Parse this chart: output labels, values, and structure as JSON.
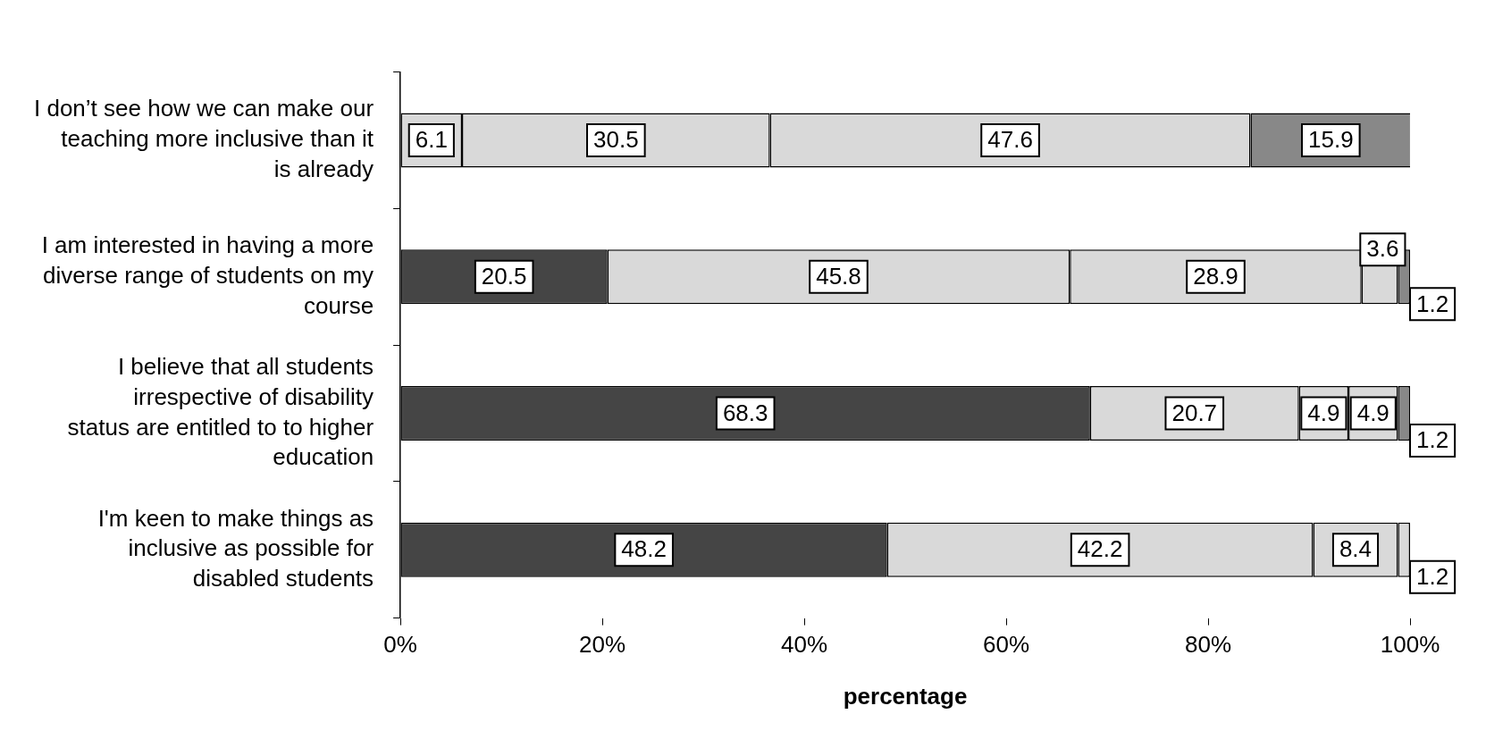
{
  "chart_data": {
    "type": "bar",
    "orientation": "horizontal",
    "stacked": true,
    "xlabel": "percentage",
    "categories": [
      "I don’t see how we can make our teaching more inclusive than it is already",
      "I am interested in having a more diverse range of students on my course",
      "I believe that all students irrespective of disability status are entitled to to higher education",
      "I'm keen to make things as inclusive as possible for disabled students"
    ],
    "series": [
      {
        "color": "#454545",
        "values": [
          null,
          20.5,
          68.3,
          48.2
        ]
      },
      {
        "color": "#d9d9d9",
        "values": [
          6.1,
          45.8,
          20.7,
          42.2
        ]
      },
      {
        "color": "#d9d9d9",
        "values": [
          30.5,
          28.9,
          4.9,
          8.4
        ]
      },
      {
        "color": "#d9d9d9",
        "values": [
          47.6,
          3.6,
          4.9,
          1.2
        ]
      },
      {
        "color": "#888888",
        "values": [
          15.9,
          1.2,
          1.2,
          null
        ]
      }
    ],
    "xlim": [
      0,
      100
    ],
    "xticks": [
      {
        "value": 0,
        "label": "0%"
      },
      {
        "value": 20,
        "label": "20%"
      },
      {
        "value": 40,
        "label": "40%"
      },
      {
        "value": 60,
        "label": "60%"
      },
      {
        "value": 80,
        "label": "80%"
      },
      {
        "value": 100,
        "label": "100%"
      }
    ],
    "data_labels": true,
    "grid": false,
    "legend": false
  }
}
